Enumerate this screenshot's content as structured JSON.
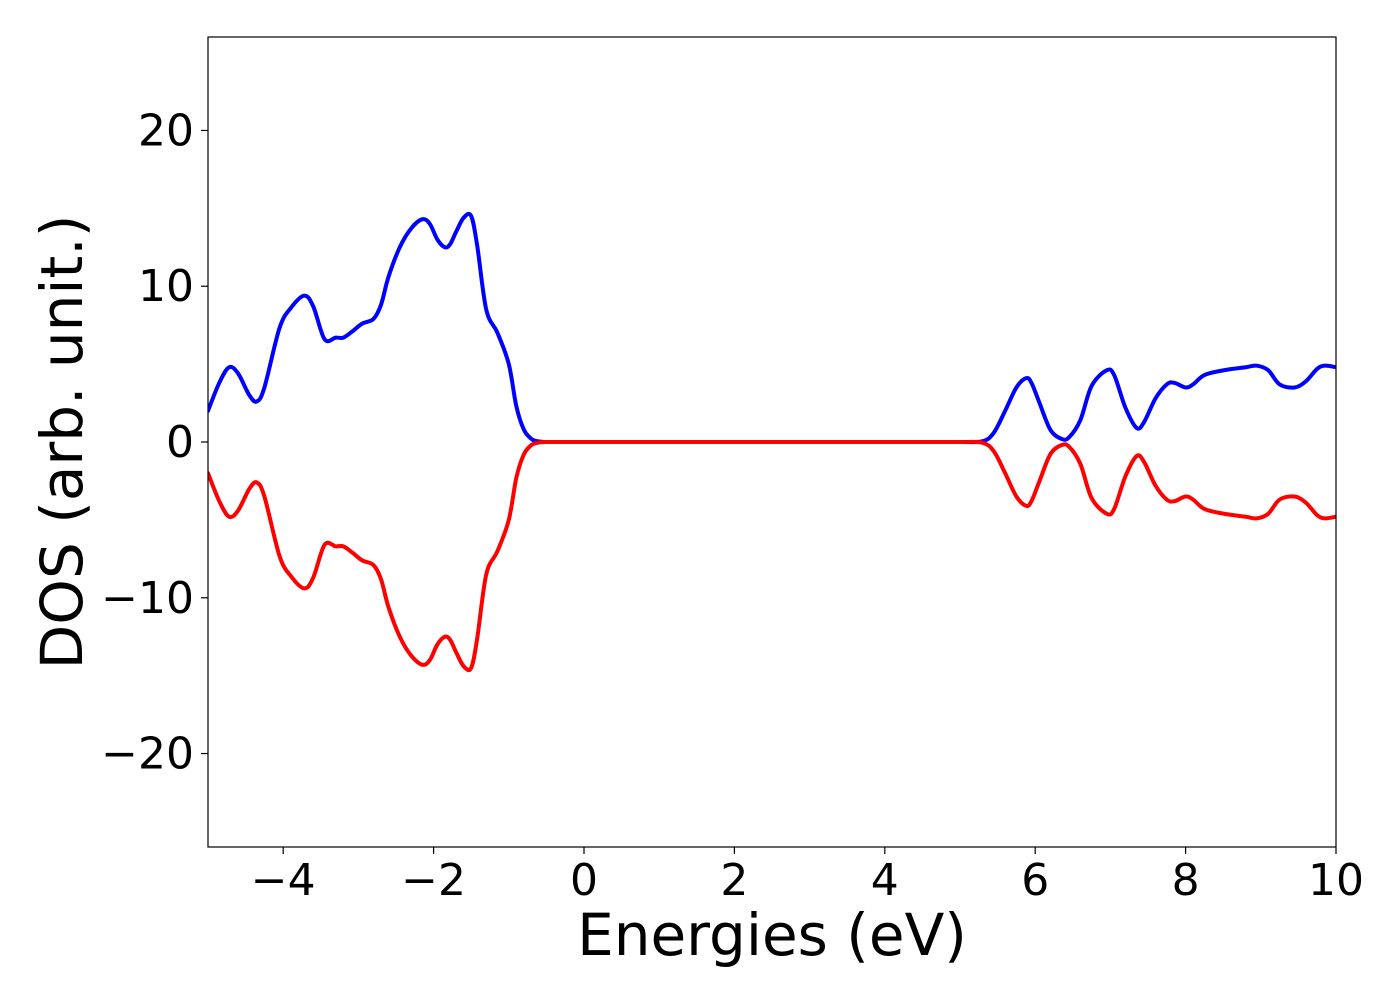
{
  "chart_data": {
    "type": "line",
    "xlabel": "Energies (eV)",
    "ylabel": "DOS (arb. unit.)",
    "xlim": [
      -5,
      10
    ],
    "ylim": [
      -26,
      26
    ],
    "x_ticks": [
      -4,
      -2,
      0,
      2,
      4,
      6,
      8,
      10
    ],
    "x_tick_labels": [
      "−4",
      "−2",
      "0",
      "2",
      "4",
      "6",
      "8",
      "10"
    ],
    "y_ticks": [
      20,
      10,
      0,
      -10,
      -20
    ],
    "y_tick_labels": [
      "20",
      "10",
      "0",
      "−10",
      "−20"
    ],
    "grid": false,
    "series": [
      {
        "color": "#0000ff",
        "x": [
          -5.0,
          -4.85,
          -4.72,
          -4.6,
          -4.45,
          -4.35,
          -4.25,
          -4.05,
          -3.9,
          -3.72,
          -3.6,
          -3.45,
          -3.3,
          -3.2,
          -3.08,
          -2.95,
          -2.8,
          -2.7,
          -2.6,
          -2.45,
          -2.3,
          -2.15,
          -2.05,
          -1.95,
          -1.85,
          -1.78,
          -1.7,
          -1.6,
          -1.5,
          -1.42,
          -1.3,
          -1.15,
          -1.0,
          -0.9,
          -0.8,
          -0.7,
          -0.62,
          -0.52,
          -0.4,
          0.0,
          2.0,
          4.0,
          5.0,
          5.3,
          5.45,
          5.6,
          5.75,
          5.88,
          5.95,
          6.05,
          6.2,
          6.35,
          6.45,
          6.6,
          6.75,
          6.95,
          7.05,
          7.2,
          7.35,
          7.45,
          7.6,
          7.75,
          7.85,
          8.0,
          8.1,
          8.25,
          8.5,
          8.8,
          8.95,
          9.1,
          9.25,
          9.45,
          9.6,
          9.75,
          9.85,
          10.0
        ],
        "y": [
          2.0,
          3.8,
          4.8,
          4.4,
          3.0,
          2.6,
          3.5,
          7.3,
          8.6,
          9.4,
          8.7,
          6.6,
          6.7,
          6.7,
          7.1,
          7.6,
          7.9,
          8.8,
          10.6,
          12.5,
          13.7,
          14.3,
          14.0,
          13.0,
          12.5,
          12.7,
          13.5,
          14.4,
          14.5,
          12.6,
          8.5,
          7.0,
          5.0,
          2.3,
          0.8,
          0.2,
          0.05,
          0.0,
          0.0,
          0.0,
          0.0,
          0.0,
          0.0,
          0.05,
          0.6,
          2.0,
          3.5,
          4.1,
          3.8,
          2.6,
          0.8,
          0.2,
          0.3,
          1.4,
          3.6,
          4.6,
          4.3,
          2.2,
          0.9,
          1.3,
          2.8,
          3.7,
          3.8,
          3.5,
          3.7,
          4.3,
          4.6,
          4.8,
          4.9,
          4.6,
          3.7,
          3.5,
          3.9,
          4.7,
          4.9,
          4.8
        ]
      },
      {
        "color": "#ff0000",
        "x": [
          -5.0,
          -4.85,
          -4.72,
          -4.6,
          -4.45,
          -4.35,
          -4.25,
          -4.05,
          -3.9,
          -3.72,
          -3.6,
          -3.45,
          -3.3,
          -3.2,
          -3.08,
          -2.95,
          -2.8,
          -2.7,
          -2.6,
          -2.45,
          -2.3,
          -2.15,
          -2.05,
          -1.95,
          -1.85,
          -1.78,
          -1.7,
          -1.6,
          -1.5,
          -1.42,
          -1.3,
          -1.15,
          -1.0,
          -0.9,
          -0.8,
          -0.7,
          -0.62,
          -0.52,
          -0.4,
          0.0,
          2.0,
          4.0,
          5.0,
          5.3,
          5.45,
          5.6,
          5.75,
          5.88,
          5.95,
          6.05,
          6.2,
          6.35,
          6.45,
          6.6,
          6.75,
          6.95,
          7.05,
          7.2,
          7.35,
          7.45,
          7.6,
          7.75,
          7.85,
          8.0,
          8.1,
          8.25,
          8.5,
          8.8,
          8.95,
          9.1,
          9.25,
          9.45,
          9.6,
          9.75,
          9.85,
          10.0
        ],
        "y": [
          -2.0,
          -3.8,
          -4.8,
          -4.4,
          -3.0,
          -2.6,
          -3.5,
          -7.3,
          -8.6,
          -9.4,
          -8.7,
          -6.6,
          -6.7,
          -6.7,
          -7.1,
          -7.6,
          -7.9,
          -8.8,
          -10.6,
          -12.5,
          -13.7,
          -14.3,
          -14.0,
          -13.0,
          -12.5,
          -12.7,
          -13.5,
          -14.4,
          -14.5,
          -12.6,
          -8.5,
          -7.0,
          -5.0,
          -2.3,
          -0.8,
          -0.2,
          -0.05,
          0.0,
          0.0,
          0.0,
          0.0,
          0.0,
          0.0,
          -0.05,
          -0.6,
          -2.0,
          -3.5,
          -4.1,
          -3.8,
          -2.6,
          -0.8,
          -0.2,
          -0.3,
          -1.4,
          -3.6,
          -4.6,
          -4.3,
          -2.2,
          -0.9,
          -1.3,
          -2.8,
          -3.7,
          -3.8,
          -3.5,
          -3.7,
          -4.3,
          -4.6,
          -4.8,
          -4.9,
          -4.6,
          -3.7,
          -3.5,
          -3.9,
          -4.7,
          -4.9,
          -4.8
        ]
      }
    ]
  }
}
